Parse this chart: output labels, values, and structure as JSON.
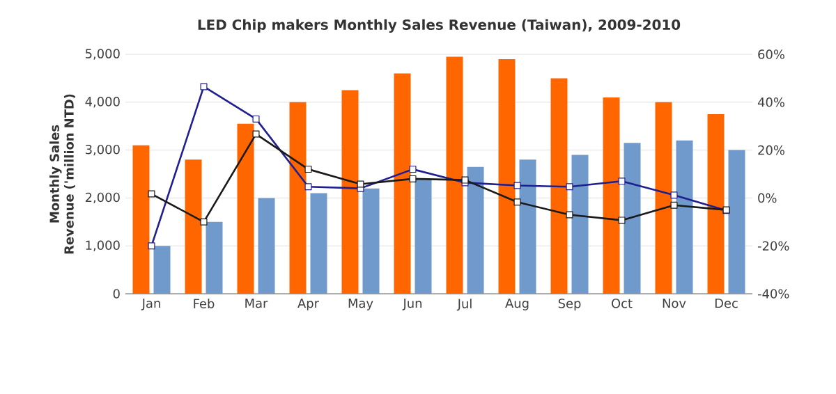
{
  "chart_data": {
    "type": "bar",
    "title": "LED Chip makers Monthly Sales Revenue (Taiwan), 2009-2010",
    "ylabel": "Monthly Sales Revenue ('million NTD)",
    "categories": [
      "Jan",
      "Feb",
      "Mar",
      "Apr",
      "May",
      "Jun",
      "Jul",
      "Aug",
      "Sep",
      "Oct",
      "Nov",
      "Dec"
    ],
    "series": [
      {
        "color": "#ff6600",
        "values": [
          3100,
          2800,
          3550,
          4000,
          4250,
          4600,
          4950,
          4900,
          4500,
          4100,
          4000,
          3750
        ]
      },
      {
        "color": "#6f9acb",
        "values": [
          1000,
          1500,
          2000,
          2100,
          2200,
          2400,
          2650,
          2800,
          2900,
          3150,
          3200,
          3000
        ]
      },
      {
        "type": "line",
        "axis": "y2",
        "color": "#1f1f8f",
        "values": [
          -20,
          46.5,
          33,
          4.7,
          4,
          12,
          6.4,
          5.2,
          4.7,
          7,
          1.2,
          -5.2
        ]
      },
      {
        "type": "line",
        "axis": "y2",
        "color": "#1a1a1a",
        "values": [
          1.7,
          -10,
          26.7,
          12,
          5.8,
          8,
          7.5,
          -1.7,
          -7,
          -9.3,
          -3,
          -5
        ]
      }
    ],
    "ylim": [
      0,
      5000
    ],
    "yticks": [
      0,
      {
        "value": 1000,
        "label": "1,000"
      },
      {
        "value": 2000,
        "label": "2,000"
      },
      {
        "value": 3000,
        "label": "3,000"
      },
      {
        "value": 4000,
        "label": "4,000"
      },
      {
        "value": 5000,
        "label": "5,000"
      }
    ],
    "y2lim": [
      -40,
      60
    ],
    "y2ticks": [
      {
        "value": -40,
        "label": "-40%"
      },
      {
        "value": -20,
        "label": "-20%"
      },
      {
        "value": 0,
        "label": "0%"
      },
      {
        "value": 20,
        "label": "20%"
      },
      {
        "value": 40,
        "label": "40%"
      },
      {
        "value": 60,
        "label": "60%"
      }
    ],
    "grid": "y",
    "marker": "square",
    "line_style": "solid"
  }
}
